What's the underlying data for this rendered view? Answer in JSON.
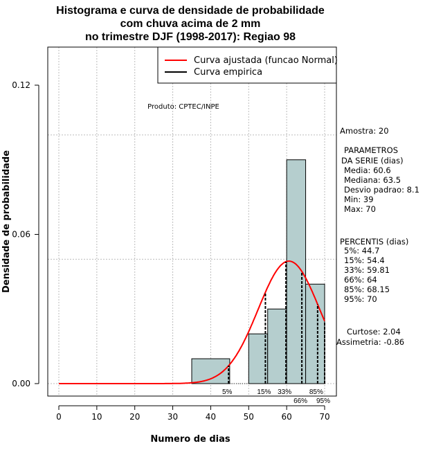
{
  "chart_data": {
    "type": "bar",
    "title": [
      "Histograma e curva de densidade de probabilidade",
      "com chuva acima de 2 mm",
      "no trimestre DJF (1998-2017): Regiao 98"
    ],
    "xlabel": "Numero de dias",
    "ylabel": "Densidade de probabilidade",
    "xlim": [
      0,
      70
    ],
    "ylim": [
      0,
      0.12
    ],
    "xticks": [
      0,
      10,
      20,
      30,
      40,
      50,
      60,
      70
    ],
    "yticks": [
      0.0,
      0.06,
      0.12
    ],
    "ytick_labels": [
      "0.00",
      "0.06",
      "0.12"
    ],
    "hgrid": [
      0,
      0.05,
      0.1
    ],
    "vgrid": [
      0,
      10,
      20,
      30,
      40,
      50,
      60,
      70
    ],
    "bins": [
      {
        "from": 35,
        "to": 45,
        "density": 0.01
      },
      {
        "from": 50,
        "to": 55,
        "density": 0.02
      },
      {
        "from": 55,
        "to": 60,
        "density": 0.03
      },
      {
        "from": 60,
        "to": 65,
        "density": 0.09
      },
      {
        "from": 65,
        "to": 70,
        "density": 0.04
      }
    ],
    "normal_curve": {
      "mean": 60.6,
      "sd": 8.1,
      "from": 0,
      "to": 70
    },
    "percentiles": [
      {
        "label": "5%",
        "value": 44.7
      },
      {
        "label": "15%",
        "value": 54.4
      },
      {
        "label": "33%",
        "value": 59.81
      },
      {
        "label": "66%",
        "value": 64
      },
      {
        "label": "85%",
        "value": 68.15
      },
      {
        "label": "95%",
        "value": 70
      }
    ],
    "legend": {
      "position": "top-right",
      "entries": [
        {
          "label": "Curva ajustada (funcao Normal)",
          "color": "#ff0000"
        },
        {
          "label": "Curva empirica",
          "color": "#000000"
        }
      ]
    },
    "annotation": "Produto: CPTEC/INPE",
    "bar_color": "#b5cece",
    "side_text": [
      "Amostra: 20",
      " PARAMETROS",
      "DA SERIE (dias)",
      "  Media: 60.6",
      "  Mediana: 63.5",
      "  Desvio padrao: 8.1",
      "  Min: 39",
      "  Max: 70",
      "PERCENTIS (dias)",
      "  5%: 44.7",
      "  15%: 54.4",
      "  33%: 59.81",
      "  66%: 64",
      "  85%: 68.15",
      "  95%: 70",
      "   Curtose: 2.04",
      "Assimetria: -0.86"
    ]
  }
}
